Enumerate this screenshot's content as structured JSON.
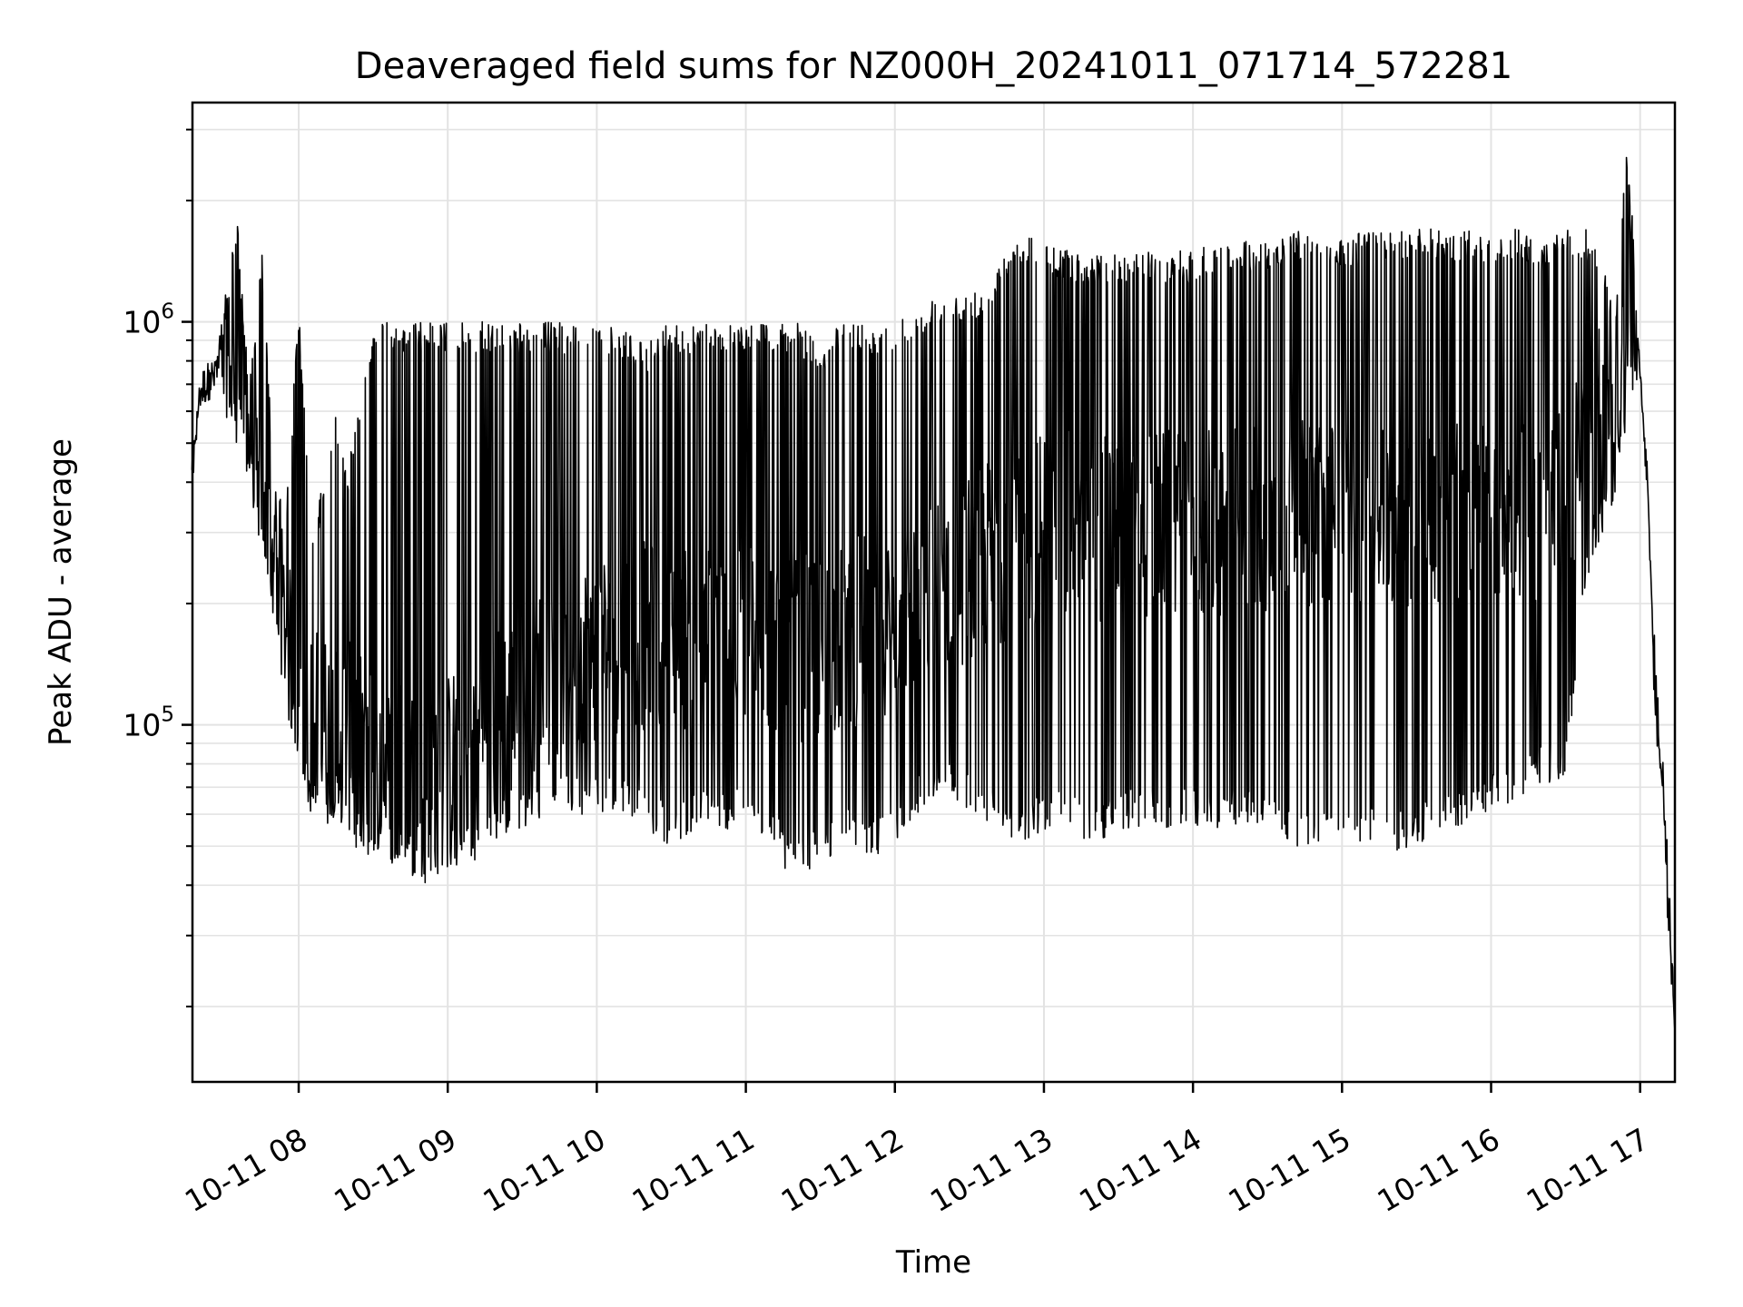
{
  "chart_data": {
    "type": "line",
    "title": "Deaveraged field sums for NZ000H_20241011_071714_572281",
    "xlabel": "Time",
    "ylabel": "Peak ADU - average",
    "yscale": "log",
    "xlim": [
      "2024-10-11 07:17:14",
      "2024-10-11 17:14:00"
    ],
    "ylim": [
      13000,
      3500000
    ],
    "grid": true,
    "line_color": "#000000",
    "grid_color": "#e3e3e3",
    "x_ticks": [
      {
        "value": "2024-10-11 08:00",
        "label": "10-11 08"
      },
      {
        "value": "2024-10-11 09:00",
        "label": "10-11 09"
      },
      {
        "value": "2024-10-11 10:00",
        "label": "10-11 10"
      },
      {
        "value": "2024-10-11 11:00",
        "label": "10-11 11"
      },
      {
        "value": "2024-10-11 12:00",
        "label": "10-11 12"
      },
      {
        "value": "2024-10-11 13:00",
        "label": "10-11 13"
      },
      {
        "value": "2024-10-11 14:00",
        "label": "10-11 14"
      },
      {
        "value": "2024-10-11 15:00",
        "label": "10-11 15"
      },
      {
        "value": "2024-10-11 16:00",
        "label": "10-11 16"
      },
      {
        "value": "2024-10-11 17:00",
        "label": "10-11 17"
      }
    ],
    "y_ticks": [
      {
        "value": 100000,
        "base": "10",
        "exponent": "5"
      },
      {
        "value": 1000000,
        "base": "10",
        "exponent": "6"
      }
    ],
    "series": [
      {
        "x": [
          "07:17",
          "07:20",
          "07:25",
          "07:30",
          "07:35",
          "07:40",
          "07:45",
          "07:50",
          "07:55",
          "08:00",
          "08:05",
          "08:10",
          "08:15",
          "08:20",
          "08:30",
          "08:40",
          "08:50",
          "09:00",
          "09:10",
          "09:20",
          "09:30",
          "09:40",
          "09:50",
          "10:00",
          "10:10",
          "10:20",
          "10:30",
          "10:40",
          "10:50",
          "11:00",
          "11:10",
          "11:20",
          "11:30",
          "11:40",
          "11:50",
          "12:00",
          "12:10",
          "12:20",
          "12:30",
          "12:40",
          "12:50",
          "13:00",
          "13:10",
          "13:20",
          "13:30",
          "13:40",
          "13:50",
          "14:00",
          "14:10",
          "14:20",
          "14:30",
          "14:40",
          "14:50",
          "15:00",
          "15:10",
          "15:20",
          "15:30",
          "15:40",
          "15:50",
          "16:00",
          "16:10",
          "16:20",
          "16:30",
          "16:40",
          "16:50",
          "16:55",
          "17:00",
          "17:03",
          "17:06",
          "17:09",
          "17:12",
          "17:14"
        ],
        "max": [
          450000,
          700000,
          800000,
          1100000,
          1900000,
          700000,
          1600000,
          400000,
          350000,
          1100000,
          300000,
          400000,
          600000,
          450000,
          1000000,
          1000000,
          1000000,
          1000000,
          1000000,
          1000000,
          1000000,
          1000000,
          1000000,
          1000000,
          950000,
          900000,
          1000000,
          1000000,
          1000000,
          1000000,
          1000000,
          1000000,
          900000,
          1000000,
          1000000,
          1000000,
          1100000,
          1200000,
          1200000,
          1300000,
          1700000,
          1600000,
          1500000,
          1500000,
          1500000,
          1500000,
          1500000,
          1500000,
          1600000,
          1600000,
          1600000,
          1700000,
          1600000,
          1600000,
          1700000,
          1700000,
          1700000,
          1700000,
          1700000,
          1600000,
          1700000,
          1600000,
          1700000,
          1700000,
          1100000,
          2900000,
          800000,
          400000,
          120000,
          70000,
          30000,
          18000
        ],
        "min": [
          420000,
          600000,
          650000,
          600000,
          500000,
          400000,
          250000,
          180000,
          110000,
          75000,
          60000,
          55000,
          60000,
          50000,
          45000,
          45000,
          40000,
          42000,
          45000,
          50000,
          55000,
          60000,
          60000,
          60000,
          60000,
          55000,
          50000,
          55000,
          55000,
          55000,
          50000,
          40000,
          45000,
          50000,
          45000,
          50000,
          60000,
          65000,
          60000,
          55000,
          50000,
          55000,
          55000,
          50000,
          55000,
          55000,
          55000,
          55000,
          55000,
          55000,
          55000,
          50000,
          50000,
          50000,
          50000,
          48000,
          50000,
          55000,
          55000,
          60000,
          65000,
          70000,
          75000,
          250000,
          350000,
          600000,
          700000,
          400000,
          120000,
          70000,
          30000,
          16000
        ],
        "typical": [
          440000,
          650000,
          720000,
          700000,
          650000,
          500000,
          280000,
          200000,
          150000,
          110000,
          100000,
          95000,
          95000,
          90000,
          80000,
          75000,
          70000,
          75000,
          90000,
          100000,
          110000,
          130000,
          140000,
          150000,
          160000,
          160000,
          160000,
          160000,
          160000,
          160000,
          160000,
          150000,
          150000,
          160000,
          170000,
          180000,
          200000,
          220000,
          240000,
          260000,
          280000,
          300000,
          300000,
          300000,
          300000,
          300000,
          300000,
          300000,
          300000,
          320000,
          320000,
          320000,
          320000,
          320000,
          320000,
          320000,
          330000,
          330000,
          330000,
          330000,
          330000,
          330000,
          350000,
          500000,
          700000,
          800000,
          750000,
          400000,
          120000,
          70000,
          30000,
          17000
        ]
      }
    ]
  }
}
